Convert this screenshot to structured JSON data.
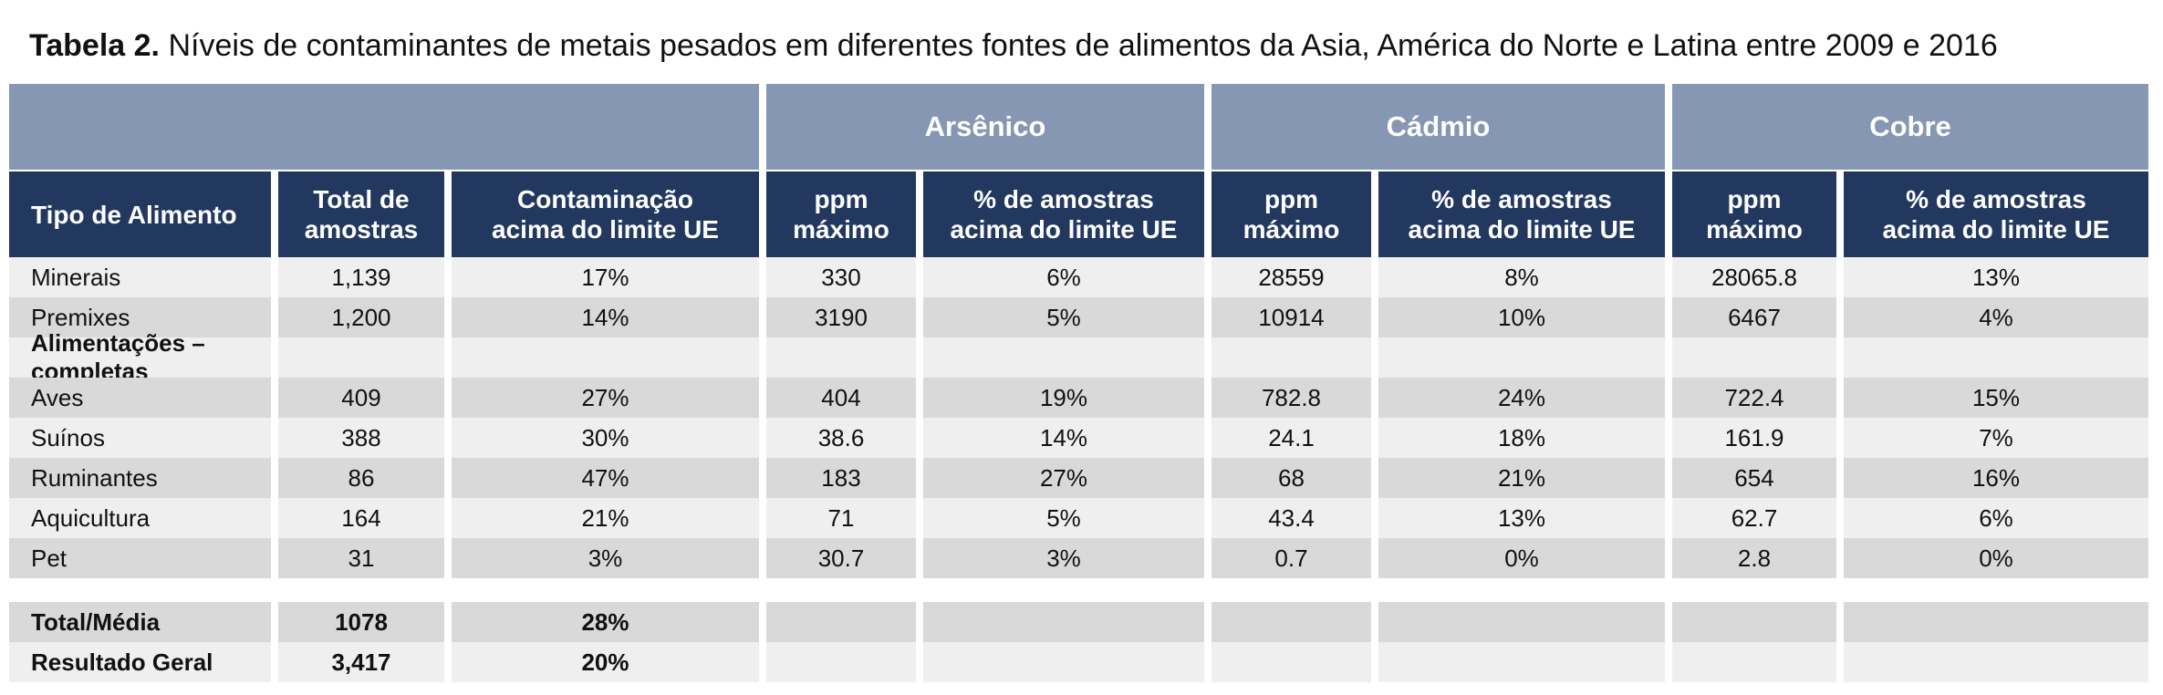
{
  "title": {
    "prefix": "Tabela 2.",
    "text": "Níveis de contaminantes de metais pesados em diferentes fontes de alimentos da Asia, América do Norte e Latina entre 2009 e 2016"
  },
  "groups": {
    "arsenico": "Arsênico",
    "cadmio": "Cádmio",
    "cobre": "Cobre"
  },
  "headers": {
    "tipo": "Tipo de Alimento",
    "total_l1": "Total de",
    "total_l2": "amostras",
    "contam_l1": "Contaminação",
    "contam_l2": "acima do limite UE",
    "ppm_l1": "ppm",
    "ppm_l2": "máximo",
    "pct_l1": "% de amostras",
    "pct_l2": "acima do limite UE"
  },
  "rows": [
    [
      "Minerais",
      "1,139",
      "17%",
      "330",
      "6%",
      "28559",
      "8%",
      "28065.8",
      "13%"
    ],
    [
      "Premixes",
      "1,200",
      "14%",
      "3190",
      "5%",
      "10914",
      "10%",
      "6467",
      "4%"
    ],
    [
      "Alimentações – completas",
      "",
      "",
      "",
      "",
      "",
      "",
      "",
      ""
    ],
    [
      "Aves",
      "409",
      "27%",
      "404",
      "19%",
      "782.8",
      "24%",
      "722.4",
      "15%"
    ],
    [
      "Suínos",
      "388",
      "30%",
      "38.6",
      "14%",
      "24.1",
      "18%",
      "161.9",
      "7%"
    ],
    [
      "Ruminantes",
      "86",
      "47%",
      "183",
      "27%",
      "68",
      "21%",
      "654",
      "16%"
    ],
    [
      "Aquicultura",
      "164",
      "21%",
      "71",
      "5%",
      "43.4",
      "13%",
      "62.7",
      "6%"
    ],
    [
      "Pet",
      "31",
      "3%",
      "30.7",
      "3%",
      "0.7",
      "0%",
      "2.8",
      "0%"
    ]
  ],
  "totals": [
    [
      "Total/Média",
      "1078",
      "28%",
      "",
      "",
      "",
      "",
      "",
      ""
    ],
    [
      "Resultado Geral",
      "3,417",
      "20%",
      "",
      "",
      "",
      "",
      "",
      ""
    ]
  ]
}
